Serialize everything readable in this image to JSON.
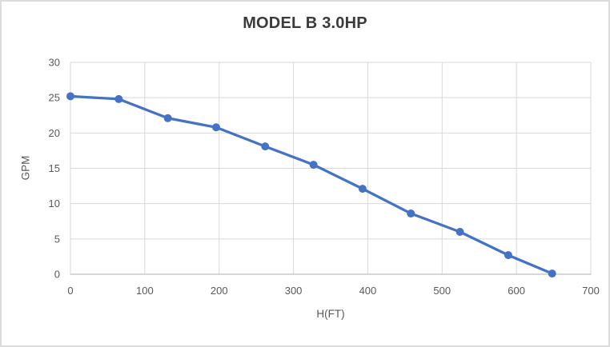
{
  "chart_data": {
    "type": "line",
    "title": "MODEL B 3.0HP",
    "xlabel": "H(FT)",
    "ylabel": "GPM",
    "xlim": [
      0,
      700
    ],
    "ylim": [
      0,
      30
    ],
    "xticks": [
      0,
      100,
      200,
      300,
      400,
      500,
      600,
      700
    ],
    "yticks": [
      0,
      5,
      10,
      15,
      20,
      25,
      30
    ],
    "grid": true,
    "legend": false,
    "series": [
      {
        "name": "MODEL B 3.0HP",
        "color": "#4472C4",
        "marker": "circle",
        "x": [
          0,
          65,
          131,
          196,
          262,
          327,
          393,
          458,
          524,
          589,
          648
        ],
        "y": [
          25.2,
          24.8,
          22.1,
          20.8,
          18.1,
          15.5,
          12.1,
          8.6,
          6.0,
          2.7,
          0.1
        ]
      }
    ],
    "colors": {
      "series": "#4472C4",
      "gridline": "#D9D9D9",
      "axis_line": "#BFBFBF",
      "tick_text": "#595959",
      "title_text": "#3B3B3B",
      "frame_border": "#DCDCDC",
      "background": "#FFFFFF"
    }
  }
}
